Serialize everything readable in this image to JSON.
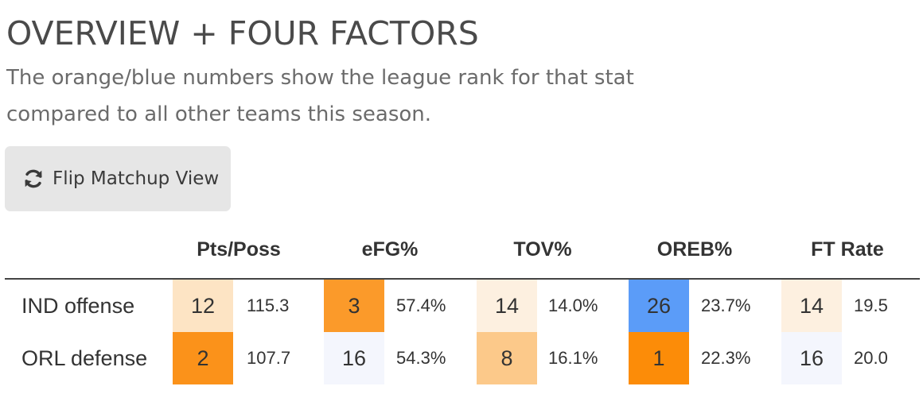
{
  "section": {
    "title": "OVERVIEW + FOUR FACTORS",
    "subtitle": "The orange/blue numbers show the league rank for that stat compared to all other teams this season."
  },
  "flip_button": {
    "icon": "refresh-icon",
    "label": "Flip Matchup View"
  },
  "table": {
    "columns": [
      "Pts/Poss",
      "eFG%",
      "TOV%",
      "OREB%",
      "FT Rate"
    ],
    "rows": [
      {
        "label": "IND offense",
        "cells": [
          {
            "rank": "12",
            "value": "115.3",
            "color": "#fde4c4"
          },
          {
            "rank": "3",
            "value": "57.4%",
            "color": "#fb9a2a"
          },
          {
            "rank": "14",
            "value": "14.0%",
            "color": "#fdf0e0"
          },
          {
            "rank": "26",
            "value": "23.7%",
            "color": "#5b9cf8"
          },
          {
            "rank": "14",
            "value": "19.5",
            "color": "#fdf0e0"
          }
        ]
      },
      {
        "label": "ORL defense",
        "cells": [
          {
            "rank": "2",
            "value": "107.7",
            "color": "#fb921a"
          },
          {
            "rank": "16",
            "value": "54.3%",
            "color": "#f4f6fd"
          },
          {
            "rank": "8",
            "value": "16.1%",
            "color": "#fcc98a"
          },
          {
            "rank": "1",
            "value": "22.3%",
            "color": "#fc8c08"
          },
          {
            "rank": "16",
            "value": "20.0",
            "color": "#f4f6fd"
          }
        ]
      }
    ]
  }
}
